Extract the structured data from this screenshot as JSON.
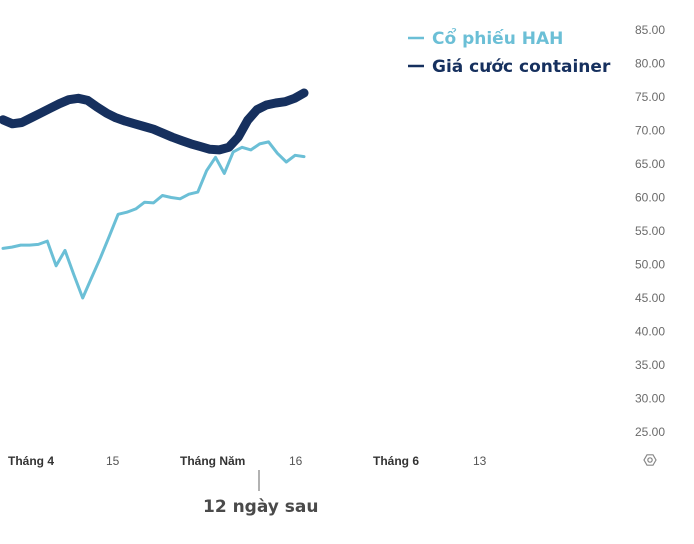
{
  "chart_data": {
    "type": "line",
    "title": "",
    "xlabel": "",
    "ylabel": "",
    "ylim": [
      25,
      85
    ],
    "y_ticks": [
      "25.00",
      "30.00",
      "35.00",
      "40.00",
      "45.00",
      "50.00",
      "55.00",
      "60.00",
      "65.00",
      "70.00",
      "75.00",
      "80.00",
      "85.00"
    ],
    "x_ticks": [
      {
        "label": "Tháng 4",
        "bold": true
      },
      {
        "label": "15",
        "bold": false
      },
      {
        "label": "Tháng Năm",
        "bold": true
      },
      {
        "label": "16",
        "bold": false
      },
      {
        "label": "Tháng 6",
        "bold": true
      },
      {
        "label": "13",
        "bold": false
      }
    ],
    "legend": {
      "position": "top-right"
    },
    "annotation": "12 ngày sau",
    "series": [
      {
        "name": "Cổ phiếu HAH",
        "color": "#6bbfd6",
        "values": [
          52.4,
          52.6,
          52.9,
          52.9,
          53.0,
          53.5,
          49.8,
          52.1,
          48.5,
          45.0,
          48.0,
          51.0,
          54.2,
          57.5,
          57.8,
          58.3,
          59.3,
          59.2,
          60.3,
          60.0,
          59.8,
          60.5,
          60.8,
          64.0,
          66.0,
          63.6,
          66.8,
          67.5,
          67.1,
          68.0,
          68.3,
          66.6,
          65.3,
          66.3,
          66.1
        ]
      },
      {
        "name": "Giá cước container",
        "color": "#16305e",
        "values": [
          71.6,
          71.0,
          71.2,
          71.9,
          72.6,
          73.3,
          74.0,
          74.6,
          74.8,
          74.5,
          73.5,
          72.6,
          71.9,
          71.4,
          71.0,
          70.6,
          70.2,
          69.6,
          69.0,
          68.5,
          68.0,
          67.6,
          67.2,
          67.1,
          67.5,
          69.0,
          71.5,
          73.1,
          73.8,
          74.1,
          74.3,
          74.8,
          75.6
        ]
      }
    ]
  }
}
